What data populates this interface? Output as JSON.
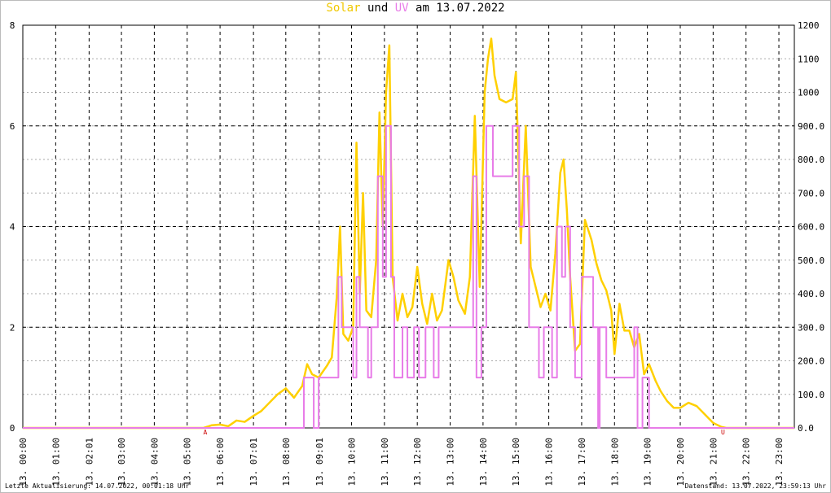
{
  "chart_data": {
    "type": "line",
    "title_parts": [
      {
        "text": "Solar",
        "color": "#f0c800"
      },
      {
        "text": "und",
        "color": "#000000"
      },
      {
        "text": "UV",
        "color": "#e87ce8"
      },
      {
        "text": "am 13.07.2022",
        "color": "#000000"
      }
    ],
    "xlim": [
      0,
      23.47
    ],
    "xticks": [
      {
        "value": 0,
        "label": "13. 00:00"
      },
      {
        "value": 1,
        "label": "13. 01:00"
      },
      {
        "value": 2.0167,
        "label": "13. 02:01"
      },
      {
        "value": 3,
        "label": "13. 03:00"
      },
      {
        "value": 4,
        "label": "13. 04:00"
      },
      {
        "value": 5,
        "label": "13. 05:00"
      },
      {
        "value": 6,
        "label": "13. 06:00"
      },
      {
        "value": 7.0167,
        "label": "13. 07:01"
      },
      {
        "value": 8,
        "label": "13. 08:00"
      },
      {
        "value": 9.0167,
        "label": "13. 09:01"
      },
      {
        "value": 10,
        "label": "13. 10:00"
      },
      {
        "value": 11,
        "label": "13. 11:00"
      },
      {
        "value": 12,
        "label": "13. 12:00"
      },
      {
        "value": 13,
        "label": "13. 13:00"
      },
      {
        "value": 14,
        "label": "13. 14:00"
      },
      {
        "value": 15,
        "label": "13. 15:00"
      },
      {
        "value": 16,
        "label": "13. 16:00"
      },
      {
        "value": 17,
        "label": "13. 17:00"
      },
      {
        "value": 18,
        "label": "13. 18:00"
      },
      {
        "value": 19,
        "label": "13. 19:00"
      },
      {
        "value": 20,
        "label": "13. 20:00"
      },
      {
        "value": 21,
        "label": "13. 21:00"
      },
      {
        "value": 22,
        "label": "13. 22:00"
      },
      {
        "value": 23,
        "label": "13. 23:00"
      }
    ],
    "ylim": [
      0,
      8
    ],
    "yticks": [
      0,
      2,
      4,
      6,
      8
    ],
    "y2lim": [
      0,
      1200
    ],
    "y2ticks": [
      {
        "value": 0,
        "label": "0.0"
      },
      {
        "value": 100,
        "label": "100.0"
      },
      {
        "value": 200,
        "label": "200.0"
      },
      {
        "value": 300,
        "label": "300.0"
      },
      {
        "value": 400,
        "label": "400.0"
      },
      {
        "value": 500,
        "label": "500.0"
      },
      {
        "value": 600,
        "label": "600.0"
      },
      {
        "value": 700,
        "label": "700.0"
      },
      {
        "value": 800,
        "label": "800.0"
      },
      {
        "value": 900,
        "label": "900.0"
      },
      1000,
      1100,
      1200
    ],
    "grid": true,
    "series": [
      {
        "name": "Solar",
        "color": "#ffd000",
        "axis": "y2",
        "step": false,
        "x": [
          0,
          5.5,
          5.75,
          6,
          6.25,
          6.5,
          6.75,
          7,
          7.25,
          7.5,
          7.75,
          8,
          8.25,
          8.5,
          8.65,
          8.8,
          9,
          9.25,
          9.4,
          9.55,
          9.65,
          9.75,
          9.9,
          10.05,
          10.15,
          10.25,
          10.35,
          10.45,
          10.6,
          10.75,
          10.85,
          10.95,
          11.05,
          11.15,
          11.25,
          11.4,
          11.55,
          11.7,
          11.85,
          12,
          12.15,
          12.3,
          12.45,
          12.6,
          12.75,
          12.95,
          13.1,
          13.25,
          13.45,
          13.6,
          13.75,
          13.9,
          14.05,
          14.15,
          14.25,
          14.35,
          14.5,
          14.7,
          14.9,
          15,
          15.15,
          15.3,
          15.45,
          15.6,
          15.75,
          15.9,
          16.05,
          16.2,
          16.35,
          16.45,
          16.55,
          16.65,
          16.8,
          16.95,
          17.1,
          17.3,
          17.45,
          17.6,
          17.75,
          17.9,
          18,
          18.15,
          18.3,
          18.45,
          18.6,
          18.75,
          18.9,
          19.05,
          19.25,
          19.4,
          19.6,
          19.8,
          20,
          20.25,
          20.5,
          20.75,
          21,
          21.25,
          21.4,
          23.47
        ],
        "values": [
          0,
          0,
          8,
          10,
          5,
          22,
          18,
          35,
          50,
          75,
          100,
          118,
          90,
          125,
          190,
          160,
          150,
          185,
          210,
          390,
          600,
          280,
          260,
          300,
          850,
          400,
          700,
          350,
          330,
          500,
          940,
          600,
          1000,
          1140,
          450,
          320,
          400,
          330,
          360,
          480,
          370,
          310,
          400,
          320,
          350,
          500,
          450,
          380,
          340,
          450,
          930,
          420,
          1000,
          1100,
          1160,
          1050,
          980,
          970,
          980,
          1060,
          550,
          900,
          480,
          420,
          360,
          400,
          350,
          520,
          760,
          800,
          650,
          450,
          230,
          250,
          620,
          560,
          490,
          440,
          410,
          350,
          220,
          370,
          290,
          290,
          240,
          280,
          160,
          190,
          140,
          110,
          80,
          60,
          60,
          75,
          65,
          40,
          15,
          3,
          0,
          0
        ]
      },
      {
        "name": "UV",
        "color": "#e87ce8",
        "axis": "y",
        "step": true,
        "x": [
          0,
          8.55,
          8.85,
          9,
          9.6,
          9.7,
          10.05,
          10.15,
          10.25,
          10.5,
          10.6,
          10.8,
          10.95,
          11.05,
          11.2,
          11.3,
          11.55,
          11.7,
          11.9,
          12.05,
          12.25,
          12.5,
          12.65,
          13.7,
          13.8,
          13.95,
          14.1,
          14.3,
          14.9,
          15.1,
          15.25,
          15.4,
          15.7,
          15.85,
          16.1,
          16.25,
          16.4,
          16.5,
          16.65,
          16.8,
          17,
          17.35,
          17.5,
          17.55,
          17.75,
          18.6,
          18.7,
          18.85,
          19.05,
          23.47
        ],
        "values": [
          0,
          1,
          0,
          1,
          3,
          2,
          1,
          3,
          2,
          1,
          2,
          5,
          3,
          6,
          3,
          1,
          2,
          1,
          2,
          1,
          2,
          1,
          2,
          5,
          1,
          2,
          6,
          5,
          6,
          4,
          5,
          2,
          1,
          2,
          1,
          4,
          3,
          4,
          2,
          1,
          3,
          2,
          0,
          2,
          1,
          2,
          0,
          1,
          0,
          0
        ]
      }
    ],
    "annotations": [
      {
        "text": "A",
        "x": 5.55,
        "color": "#cc0000"
      },
      {
        "text": "U",
        "x": 21.3,
        "color": "#cc0000"
      }
    ],
    "footer_left": "Letzte Aktualisierung: 14.07.2022, 00:01:18 Uhr",
    "footer_right": "Datenstand: 13.07.2022, 23:59:13 Uhr"
  }
}
